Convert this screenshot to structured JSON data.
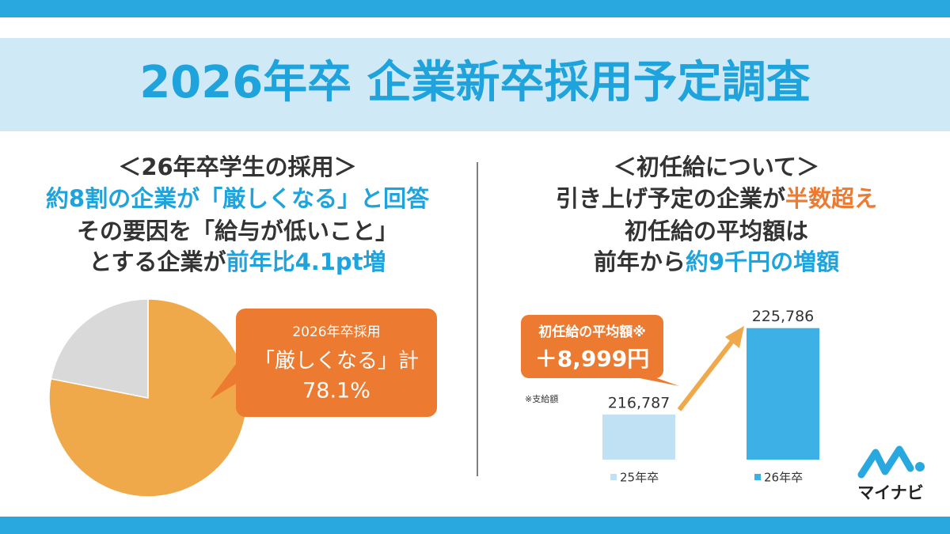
{
  "header": {
    "title": "2026年卒 企業新卒採用予定調査"
  },
  "left_text": {
    "lines": [
      [
        "＜26年卒学生の採用＞"
      ],
      [
        "約8割の企業が「厳しくなる」と回答"
      ],
      [
        "その要因を「給与が低いこと」"
      ],
      [
        "とする企業が",
        "前年比4.1pt増"
      ]
    ]
  },
  "right_text": {
    "lines": [
      [
        "＜初任給について＞"
      ],
      [
        "引き上げ予定の企業が",
        "半数超え"
      ],
      [
        "初任給の平均額は"
      ],
      [
        "前年から",
        "約9千円の増額"
      ]
    ]
  },
  "chart_data": [
    {
      "type": "pie",
      "values": [
        78.1,
        21.9
      ],
      "value_labels": [
        "78.1%",
        null
      ],
      "colors": [
        "#f0a94a",
        "#d9d9d9"
      ],
      "annotation": [
        "2026年卒採用",
        "「厳しくなる」計"
      ]
    },
    {
      "type": "bar",
      "categories": [
        "25年卒",
        "26年卒"
      ],
      "values": [
        216787,
        225786
      ],
      "value_labels": [
        "216,787",
        "225,786"
      ],
      "colors": [
        "#bfe1f3",
        "#3db0e6"
      ],
      "ylim": [
        212100,
        227000
      ],
      "annotation": [
        "初任給の平均額※",
        "＋8,999円"
      ],
      "note": "※支給額"
    }
  ],
  "logo": "マイナビ"
}
